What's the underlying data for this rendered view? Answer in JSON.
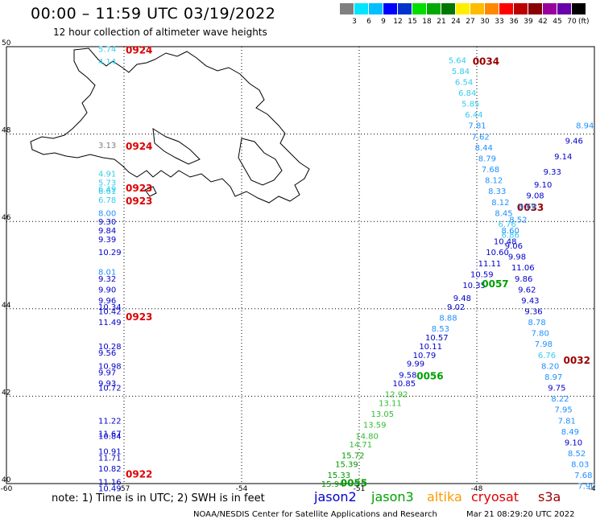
{
  "title": "00:00 – 11:59 UTC 03/19/2022",
  "subtitle": "12 hour collection of altimeter wave heights",
  "color_scale": {
    "ticks": [
      "3",
      "6",
      "9",
      "12",
      "15",
      "18",
      "21",
      "24",
      "27",
      "30",
      "33",
      "36",
      "39",
      "42",
      "45",
      "70"
    ],
    "unit": "(ft)",
    "colors": [
      "#808080",
      "#00e5ff",
      "#00bfff",
      "#0000ff",
      "#0033cc",
      "#00dd00",
      "#00aa00",
      "#007700",
      "#ffee00",
      "#ffbb00",
      "#ff8800",
      "#ff0000",
      "#bb0000",
      "#880000",
      "#990099",
      "#6600aa",
      "#000000"
    ]
  },
  "lat_labels": [
    "50",
    "48",
    "46",
    "44",
    "42",
    "40"
  ],
  "lon_labels": [
    "-60",
    "-57",
    "-54",
    "-51",
    "-48",
    "-45"
  ],
  "note": "note: 1) Time is in UTC; 2) SWH is in feet",
  "legend": [
    {
      "name": "jason2",
      "color": "#0000cc"
    },
    {
      "name": "jason3",
      "color": "#00a000"
    },
    {
      "name": "altika",
      "color": "#ff9900"
    },
    {
      "name": "cryosat",
      "color": "#dd0000"
    },
    {
      "name": "s3a",
      "color": "#990000"
    }
  ],
  "credit": "NOAA/NESDIS Center for Satellite Applications and Research",
  "timestamp": "Mar 21 08:29:20 UTC 2022",
  "tracks": [
    {
      "satellite": "cryosat",
      "lon": -57.0,
      "times": [
        {
          "lat": 49.95,
          "label": "0924"
        },
        {
          "lat": 47.75,
          "label": "0924"
        },
        {
          "lat": 46.8,
          "label": "0923"
        },
        {
          "lat": 46.5,
          "label": "0923"
        },
        {
          "lat": 43.85,
          "label": "0923"
        },
        {
          "lat": 40.25,
          "label": "0922"
        }
      ],
      "values": [
        [
          49.95,
          "5.74"
        ],
        [
          49.67,
          "4.14"
        ],
        [
          47.75,
          "3.13"
        ],
        [
          47.1,
          "4.91"
        ],
        [
          46.9,
          "5.73"
        ],
        [
          46.75,
          "6.49"
        ],
        [
          46.7,
          "6.61"
        ],
        [
          46.5,
          "6.78"
        ],
        [
          46.2,
          "8.00"
        ],
        [
          46.0,
          "9.30"
        ],
        [
          45.8,
          "9.84"
        ],
        [
          45.6,
          "9.39"
        ],
        [
          45.3,
          "10.29"
        ],
        [
          44.85,
          "8.01"
        ],
        [
          44.7,
          "9.32"
        ],
        [
          44.45,
          "9.90"
        ],
        [
          44.2,
          "9.96"
        ],
        [
          44.05,
          "10.34"
        ],
        [
          43.95,
          "10.42"
        ],
        [
          43.7,
          "11.49"
        ],
        [
          43.15,
          "10.28"
        ],
        [
          43.0,
          "9.56"
        ],
        [
          42.7,
          "10.98"
        ],
        [
          42.55,
          "9.97"
        ],
        [
          42.3,
          "9.93"
        ],
        [
          42.2,
          "10.72"
        ],
        [
          41.45,
          "11.22"
        ],
        [
          41.15,
          "11.67"
        ],
        [
          41.1,
          "10.84"
        ],
        [
          40.75,
          "10.91"
        ],
        [
          40.6,
          "11.71"
        ],
        [
          40.35,
          "10.82"
        ],
        [
          40.05,
          "11.16"
        ],
        [
          39.9,
          "10.49"
        ]
      ]
    },
    {
      "satellite": "s3a",
      "lon": -48.0,
      "times": [
        {
          "lat": 49.7,
          "label": "0034"
        },
        {
          "lat": 46.35,
          "label": "0033"
        },
        {
          "lat": 42.85,
          "label": "0032"
        }
      ],
      "values": [
        [
          49.7,
          "5.64"
        ],
        [
          49.45,
          "5.84"
        ],
        [
          49.2,
          "6.54"
        ],
        [
          48.95,
          "6.84"
        ],
        [
          48.7,
          "5.85"
        ],
        [
          48.45,
          "6.44"
        ],
        [
          48.2,
          "7.81"
        ],
        [
          47.95,
          "7.62"
        ],
        [
          47.7,
          "8.44"
        ],
        [
          47.45,
          "8.79"
        ],
        [
          47.2,
          "7.68"
        ],
        [
          46.95,
          "8.12"
        ],
        [
          46.7,
          "8.33"
        ],
        [
          46.45,
          "8.12"
        ],
        [
          46.2,
          "8.45"
        ],
        [
          45.95,
          "6.76"
        ],
        [
          45.7,
          "6.86"
        ],
        [
          45.45,
          "9.06"
        ],
        [
          45.2,
          "9.98"
        ],
        [
          44.95,
          "11.06"
        ],
        [
          44.7,
          "9.86"
        ],
        [
          44.45,
          "9.62"
        ],
        [
          44.2,
          "9.43"
        ],
        [
          43.95,
          "9.36"
        ],
        [
          43.7,
          "8.78"
        ],
        [
          43.45,
          "7.80"
        ],
        [
          43.2,
          "7.98"
        ],
        [
          42.95,
          "6.76"
        ],
        [
          42.7,
          "8.20"
        ],
        [
          42.45,
          "8.97"
        ],
        [
          42.2,
          "9.75"
        ],
        [
          41.95,
          "8.22"
        ],
        [
          41.7,
          "7.95"
        ],
        [
          41.45,
          "7.81"
        ],
        [
          41.2,
          "8.49"
        ],
        [
          40.95,
          "9.10"
        ],
        [
          40.7,
          "8.52"
        ],
        [
          40.45,
          "8.03"
        ],
        [
          40.2,
          "7.68"
        ],
        [
          39.95,
          "7.90"
        ]
      ]
    },
    {
      "satellite": "jason3",
      "times": [
        {
          "lat": 44.6,
          "label": "0057"
        },
        {
          "lat": 42.5,
          "label": "0056"
        },
        {
          "lat": 40.05,
          "label": "0055"
        }
      ],
      "values": [
        [
          48.2,
          "8.94"
        ],
        [
          47.85,
          "9.46"
        ],
        [
          47.5,
          "9.14"
        ],
        [
          47.15,
          "9.33"
        ],
        [
          46.85,
          "9.10"
        ],
        [
          46.6,
          "9.08"
        ],
        [
          46.35,
          "8.69"
        ],
        [
          46.05,
          "8.52"
        ],
        [
          45.8,
          "8.60"
        ],
        [
          45.55,
          "10.48"
        ],
        [
          45.3,
          "10.60"
        ],
        [
          45.05,
          "11.11"
        ],
        [
          44.8,
          "10.59"
        ],
        [
          44.55,
          "10.35"
        ],
        [
          44.25,
          "9.48"
        ],
        [
          44.05,
          "9.02"
        ],
        [
          43.8,
          "8.88"
        ],
        [
          43.55,
          "8.53"
        ],
        [
          43.35,
          "10.57"
        ],
        [
          43.15,
          "10.11"
        ],
        [
          42.95,
          "10.79"
        ],
        [
          42.75,
          "9.99"
        ],
        [
          42.5,
          "9.58"
        ],
        [
          42.3,
          "10.85"
        ],
        [
          42.05,
          "12.92"
        ],
        [
          41.85,
          "13.11"
        ],
        [
          41.6,
          "13.05"
        ],
        [
          41.35,
          "13.59"
        ],
        [
          41.1,
          "14.80"
        ],
        [
          40.9,
          "14.71"
        ],
        [
          40.65,
          "15.72"
        ],
        [
          40.45,
          "15.39"
        ],
        [
          40.2,
          "15.33"
        ],
        [
          40.0,
          "15.94"
        ]
      ]
    }
  ]
}
